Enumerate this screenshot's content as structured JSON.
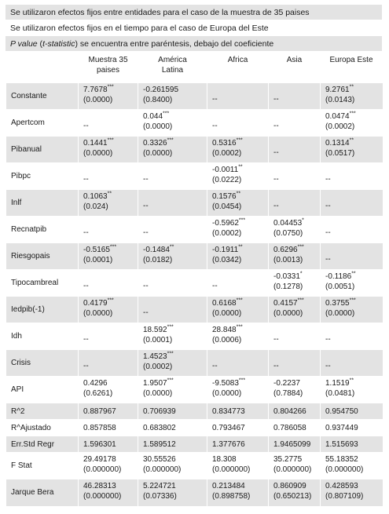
{
  "notes": [
    "Se utilizaron efectos fijos entre entidades para el caso de la muestra de 35 paises",
    "Se utilizaron efectos fijos en el tiempo para el caso de Europa del Este"
  ],
  "pvalue_note": {
    "italic_a": "P value",
    "plain_a": " (",
    "italic_b": "t-statistic",
    "plain_b": ") se encuentra entre paréntesis, debajo del coeficiente"
  },
  "columns": [
    "Muestra 35 paises",
    "América Latina",
    "Africa",
    "Asia",
    "Europa Este"
  ],
  "column_lines": [
    [
      "Muestra 35",
      "paises"
    ],
    [
      "América",
      "Latina"
    ],
    [
      "Africa",
      ""
    ],
    [
      "Asia",
      ""
    ],
    [
      "Europa Este",
      ""
    ]
  ],
  "rows": [
    {
      "label": "Constante",
      "cells": [
        [
          "7.7678",
          "***",
          "(0.0000)"
        ],
        [
          "-0.261595",
          "",
          "(0.8400)"
        ],
        [
          "--",
          "",
          ""
        ],
        [
          "--",
          "",
          ""
        ],
        [
          "9.2761",
          "**",
          "(0.0143)"
        ]
      ]
    },
    {
      "label": "Apertcom",
      "cells": [
        [
          "--",
          "",
          ""
        ],
        [
          "0.044",
          "***",
          "(0.0000)"
        ],
        [
          "--",
          "",
          ""
        ],
        [
          "--",
          "",
          ""
        ],
        [
          "0.0474",
          "***",
          "(0.0002)"
        ]
      ]
    },
    {
      "label": "Pibanual",
      "cells": [
        [
          "0.1441",
          "***",
          "(0.0000)"
        ],
        [
          "0.3326",
          "***",
          "(0.0000)"
        ],
        [
          "0.5316",
          "***",
          "(0.0002)"
        ],
        [
          "--",
          "",
          ""
        ],
        [
          "0.1314",
          "**",
          "(0.0517)"
        ]
      ]
    },
    {
      "label": "Pibpc",
      "cells": [
        [
          "--",
          "",
          ""
        ],
        [
          "--",
          "",
          ""
        ],
        [
          "-0.0011",
          "**",
          "(0.0222)"
        ],
        [
          "--",
          "",
          ""
        ],
        [
          "--",
          "",
          ""
        ]
      ]
    },
    {
      "label": "Inlf",
      "cells": [
        [
          "0.1063",
          "**",
          "(0.024)"
        ],
        [
          "--",
          "",
          ""
        ],
        [
          "0.1576",
          "**",
          "(0.0454)"
        ],
        [
          "--",
          "",
          ""
        ],
        [
          "--",
          "",
          ""
        ]
      ]
    },
    {
      "label": "Recnatpib",
      "cells": [
        [
          "--",
          "",
          ""
        ],
        [
          "--",
          "",
          ""
        ],
        [
          "-0.5962",
          "***",
          "(0.0002)"
        ],
        [
          "0.04453",
          "*",
          "(0.0750)"
        ],
        [
          "--",
          "",
          ""
        ]
      ]
    },
    {
      "label": "Riesgopais",
      "cells": [
        [
          "-0.5165",
          "***",
          "(0.0001)"
        ],
        [
          "-0.1484",
          "**",
          "(0.0182)"
        ],
        [
          "-0.1911",
          "**",
          "(0.0342)"
        ],
        [
          "0.6296",
          "***",
          "(0.0013)"
        ],
        [
          "--",
          "",
          ""
        ]
      ]
    },
    {
      "label": "Tipocambreal",
      "cells": [
        [
          "--",
          "",
          ""
        ],
        [
          "--",
          "",
          ""
        ],
        [
          "--",
          "",
          ""
        ],
        [
          "-0.0331",
          "*",
          "(0.1278)"
        ],
        [
          "-0.1186",
          "**",
          "(0.0051)"
        ]
      ]
    },
    {
      "label": "Iedpib(-1)",
      "cells": [
        [
          "0.4179",
          "***",
          "(0.0000)"
        ],
        [
          "--",
          "",
          ""
        ],
        [
          "0.6168",
          "***",
          "(0.0000)"
        ],
        [
          "0.4157",
          "***",
          "(0.0000)"
        ],
        [
          "0.3755",
          "***",
          "(0.0000)"
        ]
      ]
    },
    {
      "label": "Idh",
      "cells": [
        [
          "--",
          "",
          ""
        ],
        [
          "18.592",
          "***",
          "(0.0001)"
        ],
        [
          "28.848",
          "***",
          "(0.0006)"
        ],
        [
          "--",
          "",
          ""
        ],
        [
          "--",
          "",
          ""
        ]
      ]
    },
    {
      "label": "Crisis",
      "cells": [
        [
          "--",
          "",
          ""
        ],
        [
          "1.4523",
          "***",
          "(0.0002)"
        ],
        [
          "--",
          "",
          ""
        ],
        [
          "--",
          "",
          ""
        ],
        [
          "--",
          "",
          ""
        ]
      ]
    },
    {
      "label": "API",
      "cells": [
        [
          "0.4296",
          "",
          "(0.6261)"
        ],
        [
          "1.9507",
          "***",
          "(0.0000)"
        ],
        [
          "-9.5083",
          "***",
          "(0.0000)"
        ],
        [
          "-0.2237",
          "",
          "(0.7884)"
        ],
        [
          "1.1519",
          "**",
          "(0.0481)"
        ]
      ]
    },
    {
      "label": "R^2",
      "cells": [
        [
          "0.887967",
          "",
          ""
        ],
        [
          "0.706939",
          "",
          ""
        ],
        [
          "0.834773",
          "",
          ""
        ],
        [
          "0.804266",
          "",
          ""
        ],
        [
          "0.954750",
          "",
          ""
        ]
      ]
    },
    {
      "label": "R^Ajustado",
      "cells": [
        [
          "0.857858",
          "",
          ""
        ],
        [
          "0.683802",
          "",
          ""
        ],
        [
          "0.793467",
          "",
          ""
        ],
        [
          "0.786058",
          "",
          ""
        ],
        [
          "0.937449",
          "",
          ""
        ]
      ]
    },
    {
      "label": "Err.Std Regr",
      "cells": [
        [
          "1.596301",
          "",
          ""
        ],
        [
          "1.589512",
          "",
          ""
        ],
        [
          "1.377676",
          "",
          ""
        ],
        [
          "1.9465099",
          "",
          ""
        ],
        [
          "1.515693",
          "",
          ""
        ]
      ]
    },
    {
      "label": "F Stat",
      "cells": [
        [
          "29.49178",
          "",
          "(0.000000)"
        ],
        [
          "30.55526",
          "",
          "(0.000000)"
        ],
        [
          "18.308",
          "",
          "(0.000000)"
        ],
        [
          "35.2775",
          "",
          "(0.000000)"
        ],
        [
          "55.18352",
          "",
          "(0.000000)"
        ]
      ]
    },
    {
      "label": "Jarque Bera",
      "cells": [
        [
          "46.28313",
          "",
          "(0.000000)"
        ],
        [
          "5.224721",
          "",
          "(0.07336)"
        ],
        [
          "0.213484",
          "",
          "(0.898758)"
        ],
        [
          "0.860909",
          "",
          "(0.650213)"
        ],
        [
          "0.428593",
          "",
          "(0.807109)"
        ]
      ]
    }
  ]
}
